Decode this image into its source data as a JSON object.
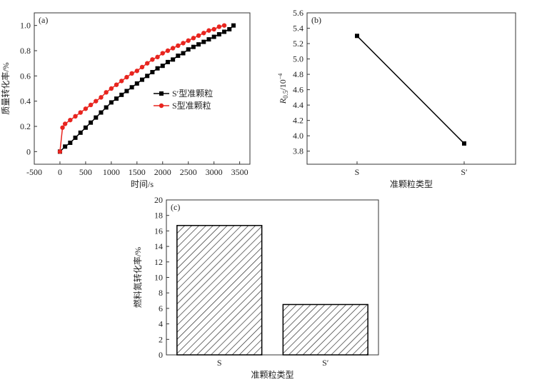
{
  "chart_data": [
    {
      "type": "line",
      "annotation": "(a)",
      "xlabel": "时间/s",
      "ylabel": "质量转化率/%",
      "xlim": [
        -500,
        3700
      ],
      "xticks": [
        -500,
        0,
        500,
        1000,
        1500,
        2000,
        2500,
        3000,
        3500
      ],
      "ylim": [
        -0.1,
        1.1
      ],
      "yticks": [
        0,
        0.2,
        0.4,
        0.6,
        0.8,
        {
          "value": 1.0,
          "label": "1.0"
        }
      ],
      "legend": "center-right",
      "series": [
        {
          "name": "S′型准颗粒",
          "color": "#000000",
          "marker": "square",
          "x": [
            0,
            100,
            200,
            300,
            400,
            500,
            600,
            700,
            800,
            900,
            1000,
            1100,
            1200,
            1300,
            1400,
            1500,
            1600,
            1700,
            1800,
            1900,
            2000,
            2100,
            2200,
            2300,
            2400,
            2500,
            2600,
            2700,
            2800,
            2900,
            3000,
            3100,
            3200,
            3300,
            3380
          ],
          "values": [
            0,
            0.04,
            0.07,
            0.11,
            0.15,
            0.19,
            0.23,
            0.27,
            0.31,
            0.35,
            0.39,
            0.42,
            0.45,
            0.48,
            0.51,
            0.54,
            0.57,
            0.6,
            0.63,
            0.66,
            0.68,
            0.71,
            0.73,
            0.76,
            0.78,
            0.81,
            0.83,
            0.85,
            0.87,
            0.89,
            0.91,
            0.93,
            0.95,
            0.97,
            1.0
          ]
        },
        {
          "name": "S型准颗粒",
          "color": "#e8251f",
          "marker": "circle",
          "x": [
            0,
            50,
            100,
            200,
            300,
            400,
            500,
            600,
            700,
            800,
            900,
            1000,
            1100,
            1200,
            1300,
            1400,
            1500,
            1600,
            1700,
            1800,
            1900,
            2000,
            2100,
            2200,
            2300,
            2400,
            2500,
            2600,
            2700,
            2800,
            2900,
            3000,
            3100,
            3200
          ],
          "values": [
            0,
            0.19,
            0.22,
            0.25,
            0.28,
            0.31,
            0.34,
            0.37,
            0.4,
            0.43,
            0.47,
            0.5,
            0.53,
            0.56,
            0.59,
            0.62,
            0.64,
            0.67,
            0.7,
            0.73,
            0.75,
            0.78,
            0.8,
            0.82,
            0.84,
            0.86,
            0.88,
            0.9,
            0.92,
            0.94,
            0.96,
            0.97,
            0.99,
            1.0
          ]
        }
      ]
    },
    {
      "type": "line",
      "annotation": "(b)",
      "xlabel": "准颗粒类型",
      "ylabel_parts": [
        "R",
        "0.5",
        "/10",
        "−4"
      ],
      "categories": [
        "S",
        "S′"
      ],
      "values": [
        5.3,
        3.9
      ],
      "color": "#000000",
      "ylim": [
        3.63,
        5.6
      ],
      "yticks": [
        3.8,
        {
          "value": 4.0,
          "label": "4.0"
        },
        4.2,
        4.4,
        4.6,
        4.8,
        {
          "value": 5.0,
          "label": "5.0"
        },
        5.2,
        5.4,
        5.6
      ]
    },
    {
      "type": "bar",
      "annotation": "(c)",
      "xlabel": "准颗粒类型",
      "ylabel": "燃料氮转化率/%",
      "categories": [
        "S",
        "S′"
      ],
      "values": [
        16.7,
        6.5
      ],
      "color": "#000000",
      "hatch": true,
      "ylim": [
        0,
        20
      ],
      "yticks": [
        0,
        2,
        4,
        6,
        8,
        10,
        12,
        14,
        16,
        18,
        20
      ]
    }
  ]
}
